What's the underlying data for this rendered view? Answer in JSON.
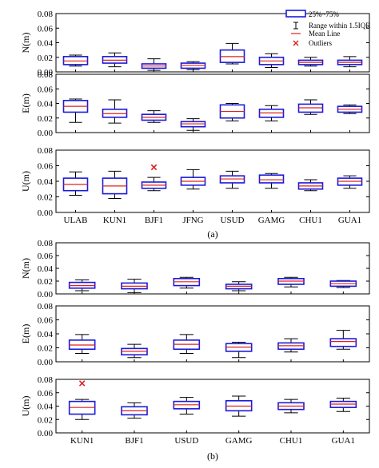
{
  "chart_data": [
    {
      "type": "box",
      "label": "(a)",
      "categories": [
        "ULAB",
        "KUN1",
        "BJF1",
        "JFNG",
        "USUD",
        "GAMG",
        "CHU1",
        "GUA1"
      ],
      "legend": {
        "placement": "top-right",
        "items": [
          "25%~75%",
          "Range within 1.5IQR",
          "Mean Line",
          "Outliers"
        ]
      },
      "colors": {
        "box": "#1a1adb",
        "mean": "#e02020",
        "outlier": "#e02020",
        "whisker": "#000000"
      },
      "panels": [
        {
          "ylabel": "N(m)",
          "ylim": [
            0,
            0.08
          ],
          "yticks": [
            "0.00",
            "0.02",
            "0.04",
            "0.06",
            "0.08"
          ],
          "boxes": [
            {
              "category": "ULAB",
              "min": 0.008,
              "q1": 0.01,
              "mean": 0.015,
              "q3": 0.021,
              "max": 0.023
            },
            {
              "category": "KUN1",
              "min": 0.007,
              "q1": 0.012,
              "mean": 0.016,
              "q3": 0.021,
              "max": 0.026
            },
            {
              "category": "BJF1",
              "min": 0.002,
              "q1": 0.005,
              "mean": 0.008,
              "q3": 0.011,
              "max": 0.018
            },
            {
              "category": "JFNG",
              "min": 0.003,
              "q1": 0.005,
              "mean": 0.009,
              "q3": 0.012,
              "max": 0.014
            },
            {
              "category": "USUD",
              "min": 0.011,
              "q1": 0.013,
              "mean": 0.021,
              "q3": 0.03,
              "max": 0.039
            },
            {
              "category": "GAMG",
              "min": 0.006,
              "q1": 0.01,
              "mean": 0.015,
              "q3": 0.02,
              "max": 0.025
            },
            {
              "category": "CHU1",
              "min": 0.008,
              "q1": 0.01,
              "mean": 0.013,
              "q3": 0.016,
              "max": 0.02
            },
            {
              "category": "GUA1",
              "min": 0.007,
              "q1": 0.01,
              "mean": 0.013,
              "q3": 0.016,
              "max": 0.021
            }
          ]
        },
        {
          "ylabel": "E(m)",
          "ylim": [
            0,
            0.08
          ],
          "yticks": [
            "0.00",
            "0.02",
            "0.04",
            "0.06",
            "0.08"
          ],
          "boxes": [
            {
              "category": "ULAB",
              "min": 0.014,
              "q1": 0.028,
              "mean": 0.036,
              "q3": 0.044,
              "max": 0.046
            },
            {
              "category": "KUN1",
              "min": 0.013,
              "q1": 0.021,
              "mean": 0.026,
              "q3": 0.032,
              "max": 0.045
            },
            {
              "category": "BJF1",
              "min": 0.014,
              "q1": 0.017,
              "mean": 0.021,
              "q3": 0.025,
              "max": 0.03
            },
            {
              "category": "JFNG",
              "min": 0.003,
              "q1": 0.008,
              "mean": 0.012,
              "q3": 0.015,
              "max": 0.019
            },
            {
              "category": "USUD",
              "min": 0.016,
              "q1": 0.02,
              "mean": 0.029,
              "q3": 0.038,
              "max": 0.04
            },
            {
              "category": "GAMG",
              "min": 0.016,
              "q1": 0.021,
              "mean": 0.027,
              "q3": 0.032,
              "max": 0.037
            },
            {
              "category": "CHU1",
              "min": 0.025,
              "q1": 0.028,
              "mean": 0.034,
              "q3": 0.039,
              "max": 0.045
            },
            {
              "category": "GUA1",
              "min": 0.026,
              "q1": 0.028,
              "mean": 0.032,
              "q3": 0.036,
              "max": 0.038
            }
          ]
        },
        {
          "ylabel": "U(m)",
          "ylim": [
            0,
            0.08
          ],
          "yticks": [
            "0.00",
            "0.02",
            "0.04",
            "0.06",
            "0.08"
          ],
          "boxes": [
            {
              "category": "ULAB",
              "min": 0.022,
              "q1": 0.028,
              "mean": 0.036,
              "q3": 0.044,
              "max": 0.052
            },
            {
              "category": "KUN1",
              "min": 0.018,
              "q1": 0.024,
              "mean": 0.034,
              "q3": 0.044,
              "max": 0.053
            },
            {
              "category": "BJF1",
              "min": 0.028,
              "q1": 0.031,
              "mean": 0.035,
              "q3": 0.039,
              "max": 0.045,
              "outliers": [
                0.058
              ]
            },
            {
              "category": "JFNG",
              "min": 0.03,
              "q1": 0.035,
              "mean": 0.04,
              "q3": 0.045,
              "max": 0.055
            },
            {
              "category": "USUD",
              "min": 0.031,
              "q1": 0.038,
              "mean": 0.043,
              "q3": 0.047,
              "max": 0.053
            },
            {
              "category": "GAMG",
              "min": 0.031,
              "q1": 0.038,
              "mean": 0.042,
              "q3": 0.048,
              "max": 0.05
            },
            {
              "category": "CHU1",
              "min": 0.028,
              "q1": 0.03,
              "mean": 0.034,
              "q3": 0.038,
              "max": 0.042
            },
            {
              "category": "GUA1",
              "min": 0.031,
              "q1": 0.035,
              "mean": 0.04,
              "q3": 0.044,
              "max": 0.047
            }
          ]
        }
      ]
    },
    {
      "type": "box",
      "label": "(b)",
      "categories": [
        "KUN1",
        "BJF1",
        "USUD",
        "GAMG",
        "CHU1",
        "GUA1"
      ],
      "colors": {
        "box": "#1a1adb",
        "mean": "#e02020",
        "outlier": "#e02020",
        "whisker": "#000000"
      },
      "panels": [
        {
          "ylabel": "N(m)",
          "ylim": [
            0,
            0.08
          ],
          "yticks": [
            "0.00",
            "0.02",
            "0.04",
            "0.06",
            "0.08"
          ],
          "boxes": [
            {
              "category": "KUN1",
              "min": 0.005,
              "q1": 0.009,
              "mean": 0.013,
              "q3": 0.018,
              "max": 0.022
            },
            {
              "category": "BJF1",
              "min": 0.002,
              "q1": 0.008,
              "mean": 0.012,
              "q3": 0.017,
              "max": 0.023
            },
            {
              "category": "USUD",
              "min": 0.009,
              "q1": 0.013,
              "mean": 0.019,
              "q3": 0.024,
              "max": 0.026
            },
            {
              "category": "GAMG",
              "min": 0.005,
              "q1": 0.008,
              "mean": 0.012,
              "q3": 0.015,
              "max": 0.019
            },
            {
              "category": "CHU1",
              "min": 0.011,
              "q1": 0.015,
              "mean": 0.02,
              "q3": 0.024,
              "max": 0.026
            },
            {
              "category": "GUA1",
              "min": 0.01,
              "q1": 0.012,
              "mean": 0.016,
              "q3": 0.02,
              "max": 0.021
            }
          ]
        },
        {
          "ylabel": "E(m)",
          "ylim": [
            0,
            0.08
          ],
          "yticks": [
            "0.00",
            "0.02",
            "0.04",
            "0.06",
            "0.08"
          ],
          "boxes": [
            {
              "category": "KUN1",
              "min": 0.012,
              "q1": 0.018,
              "mean": 0.024,
              "q3": 0.031,
              "max": 0.039
            },
            {
              "category": "BJF1",
              "min": 0.006,
              "q1": 0.01,
              "mean": 0.015,
              "q3": 0.019,
              "max": 0.025
            },
            {
              "category": "USUD",
              "min": 0.012,
              "q1": 0.018,
              "mean": 0.025,
              "q3": 0.031,
              "max": 0.039
            },
            {
              "category": "GAMG",
              "min": 0.006,
              "q1": 0.015,
              "mean": 0.021,
              "q3": 0.026,
              "max": 0.028
            },
            {
              "category": "CHU1",
              "min": 0.014,
              "q1": 0.018,
              "mean": 0.023,
              "q3": 0.027,
              "max": 0.033
            },
            {
              "category": "GUA1",
              "min": 0.018,
              "q1": 0.022,
              "mean": 0.029,
              "q3": 0.033,
              "max": 0.045
            }
          ]
        },
        {
          "ylabel": "U(m)",
          "ylim": [
            0,
            0.08
          ],
          "yticks": [
            "0.00",
            "0.02",
            "0.04",
            "0.06",
            "0.08"
          ],
          "boxes": [
            {
              "category": "KUN1",
              "min": 0.02,
              "q1": 0.028,
              "mean": 0.038,
              "q3": 0.047,
              "max": 0.05,
              "outliers": [
                0.074
              ]
            },
            {
              "category": "BJF1",
              "min": 0.022,
              "q1": 0.027,
              "mean": 0.033,
              "q3": 0.039,
              "max": 0.045
            },
            {
              "category": "USUD",
              "min": 0.028,
              "q1": 0.036,
              "mean": 0.042,
              "q3": 0.047,
              "max": 0.053
            },
            {
              "category": "GAMG",
              "min": 0.025,
              "q1": 0.033,
              "mean": 0.04,
              "q3": 0.048,
              "max": 0.055
            },
            {
              "category": "CHU1",
              "min": 0.03,
              "q1": 0.035,
              "mean": 0.04,
              "q3": 0.045,
              "max": 0.05
            },
            {
              "category": "GUA1",
              "min": 0.032,
              "q1": 0.038,
              "mean": 0.043,
              "q3": 0.047,
              "max": 0.052
            }
          ]
        }
      ]
    }
  ]
}
